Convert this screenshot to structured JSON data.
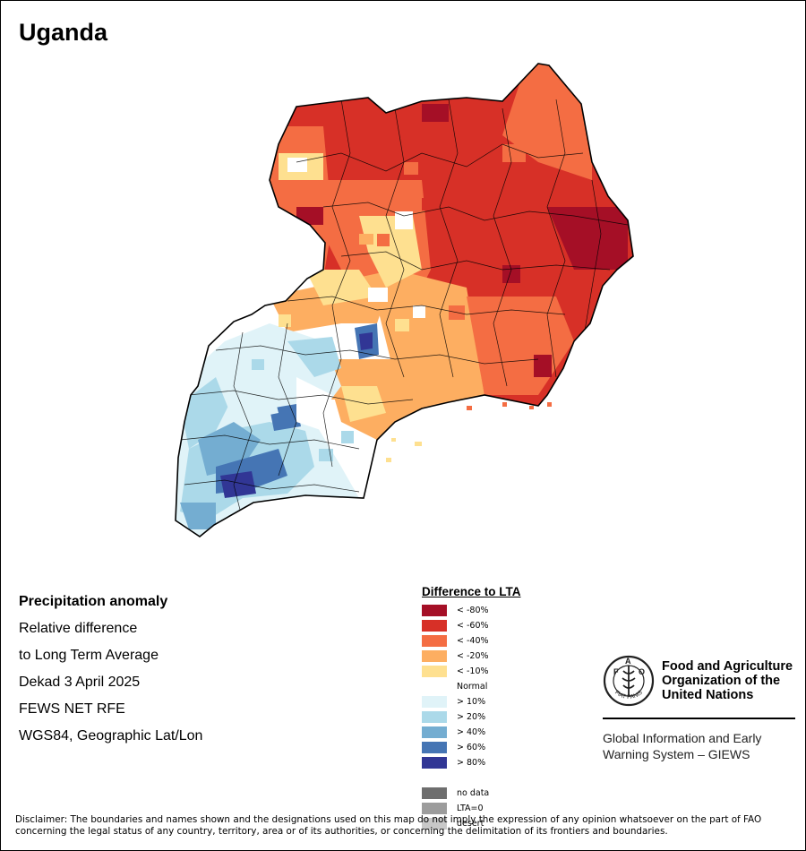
{
  "title": "Uganda",
  "info": {
    "heading": "Precipitation anomaly",
    "line1": "Relative difference",
    "line2": "to Long Term Average",
    "period": "Dekad 3 April 2025",
    "source": "FEWS NET RFE",
    "projection": "WGS84, Geographic Lat/Lon"
  },
  "legend": {
    "title": "Difference to LTA",
    "items": [
      {
        "label": "< -80%",
        "color": "#a50f26"
      },
      {
        "label": "< -60%",
        "color": "#d73027"
      },
      {
        "label": "< -40%",
        "color": "#f46d43"
      },
      {
        "label": "< -20%",
        "color": "#fdae61"
      },
      {
        "label": "< -10%",
        "color": "#fee090"
      },
      {
        "label": "Normal",
        "color": "#ffffff"
      },
      {
        "label": "> 10%",
        "color": "#e0f3f8"
      },
      {
        "label": "> 20%",
        "color": "#abd9e9"
      },
      {
        "label": "> 40%",
        "color": "#74add1"
      },
      {
        "label": "> 60%",
        "color": "#4575b4"
      },
      {
        "label": "> 80%",
        "color": "#313695"
      },
      {
        "label": "",
        "color": "#ffffff"
      },
      {
        "label": "no data",
        "color": "#6e6e6e"
      },
      {
        "label": "LTA=0",
        "color": "#9c9c9c"
      },
      {
        "label": "desert",
        "color": "#c8c8c8"
      }
    ]
  },
  "fao": {
    "line1": "Food and Agriculture",
    "line2": "Organization of the",
    "line3": "United Nations",
    "logo_text": "FIAT PANIS"
  },
  "giews": {
    "line1": "Global Information and Early",
    "line2": "Warning System – GIEWS"
  },
  "disclaimer": "Disclaimer: The boundaries and names shown and the designations used on this map do not imply the expression of any opinion whatsoever on the part of FAO concerning the legal status of any country, territory, area or of its authorities, or concerning the delimitation of its frontiers and boundaries."
}
